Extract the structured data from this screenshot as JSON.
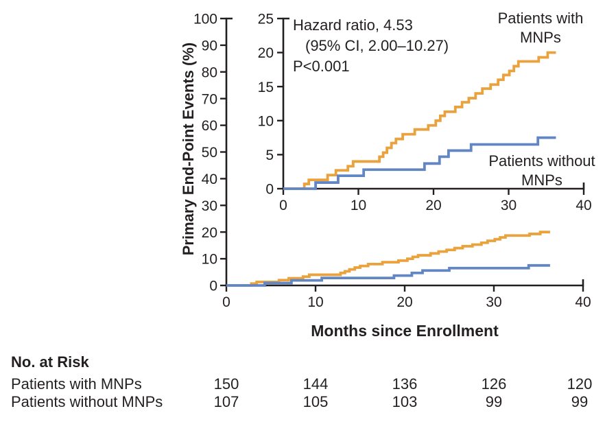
{
  "colors": {
    "with_mnps": "#E9A23C",
    "without_mnps": "#6285C4",
    "axis": "#231F20",
    "text": "#231F20"
  },
  "curve_labels": {
    "with_mnps": [
      "Patients with",
      "MNPs"
    ],
    "without_mnps": [
      "Patients without",
      "MNPs"
    ]
  },
  "risk_table": {
    "title": "No. at Risk",
    "rows": [
      {
        "label": "Patients with MNPs",
        "values": [
          "150",
          "144",
          "136",
          "126",
          "120"
        ]
      },
      {
        "label": "Patients without MNPs",
        "values": [
          "107",
          "105",
          "103",
          "99",
          "99"
        ]
      }
    ]
  },
  "chart_data": {
    "type": "line",
    "style": "kaplan-meier-step-cumulative-incidence",
    "x": {
      "label": "Months since Enrollment",
      "ticks": [
        0,
        10,
        20,
        30,
        40
      ],
      "range": [
        0,
        40
      ]
    },
    "main_panel": {
      "ylabel": "Primary End-Point Events (%)",
      "yticks": [
        0,
        10,
        20,
        30,
        40,
        50,
        60,
        70,
        80,
        90,
        100
      ],
      "ylim": [
        0,
        100
      ]
    },
    "inset_panel": {
      "yticks": [
        0,
        5,
        10,
        15,
        20,
        25
      ],
      "ylim": [
        0,
        25
      ]
    },
    "annotation": {
      "lines": [
        "Hazard ratio, 4.53",
        "(95% CI, 2.00–10.27)",
        "P<0.001"
      ]
    },
    "series": [
      {
        "name": "Patients with MNPs",
        "color_key": "with_mnps",
        "start": [
          0,
          0
        ],
        "end_month": 36.3,
        "events": [
          [
            2.8,
            0.7
          ],
          [
            3.4,
            1.3
          ],
          [
            5.9,
            2.0
          ],
          [
            7.0,
            2.7
          ],
          [
            8.6,
            3.3
          ],
          [
            9.3,
            4.0
          ],
          [
            12.8,
            4.7
          ],
          [
            13.3,
            5.3
          ],
          [
            13.8,
            6.0
          ],
          [
            14.4,
            6.7
          ],
          [
            15.0,
            7.3
          ],
          [
            15.9,
            8.0
          ],
          [
            17.5,
            8.7
          ],
          [
            19.3,
            9.3
          ],
          [
            20.3,
            10.0
          ],
          [
            20.9,
            10.7
          ],
          [
            21.5,
            11.3
          ],
          [
            22.9,
            12.0
          ],
          [
            23.8,
            12.7
          ],
          [
            24.7,
            13.3
          ],
          [
            25.6,
            14.0
          ],
          [
            26.5,
            14.7
          ],
          [
            27.6,
            15.3
          ],
          [
            28.6,
            16.0
          ],
          [
            29.3,
            16.7
          ],
          [
            30.1,
            17.3
          ],
          [
            30.7,
            18.0
          ],
          [
            31.3,
            18.7
          ],
          [
            34.0,
            19.3
          ],
          [
            35.2,
            20.0
          ]
        ]
      },
      {
        "name": "Patients without MNPs",
        "color_key": "without_mnps",
        "start": [
          0,
          0
        ],
        "end_month": 36.3,
        "events": [
          [
            4.3,
            0.9
          ],
          [
            7.3,
            1.9
          ],
          [
            10.7,
            2.8
          ],
          [
            18.8,
            3.7
          ],
          [
            20.8,
            4.7
          ],
          [
            22.0,
            5.6
          ],
          [
            25.0,
            6.5
          ],
          [
            33.9,
            7.5
          ]
        ]
      }
    ]
  }
}
